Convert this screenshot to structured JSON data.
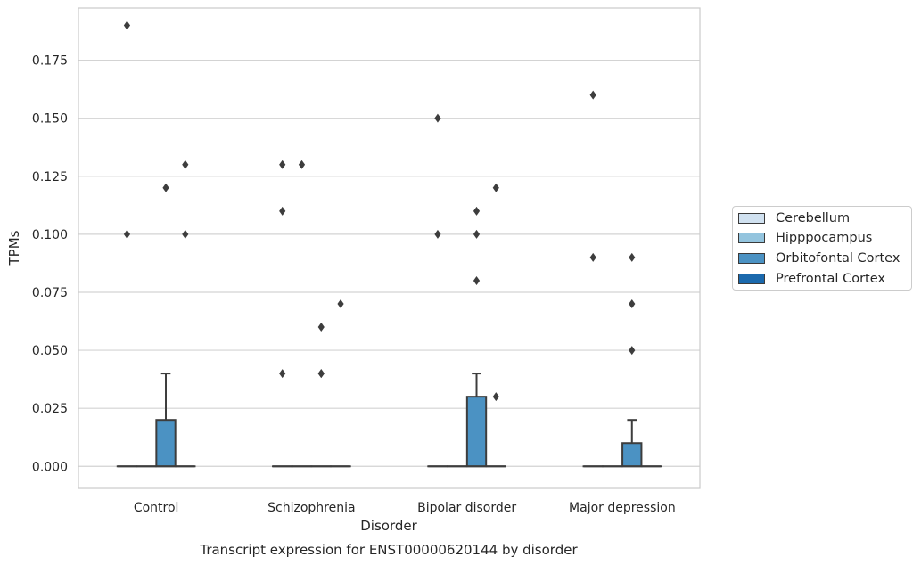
{
  "chart_data": {
    "type": "box",
    "title": "",
    "caption": "Transcript expression for ENST00000620144 by disorder",
    "xlabel": "Disorder",
    "ylabel": "TPMs",
    "ylim": [
      -0.0095,
      0.1975
    ],
    "yticks": [
      0.0,
      0.025,
      0.05,
      0.075,
      0.1,
      0.125,
      0.15,
      0.175
    ],
    "ytick_labels": [
      "0.000",
      "0.025",
      "0.050",
      "0.075",
      "0.100",
      "0.125",
      "0.150",
      "0.175"
    ],
    "grid": true,
    "legend_position": "right",
    "categories": [
      "Control",
      "Schizophrenia",
      "Bipolar disorder",
      "Major depression"
    ],
    "hue_order": [
      "Cerebellum",
      "Hipppocampus",
      "Orbitofontal Cortex",
      "Prefrontal Cortex"
    ],
    "colors": {
      "Cerebellum": "#d0e1f0",
      "Hipppocampus": "#93c4de",
      "Orbitofontal Cortex": "#4b92c3",
      "Prefrontal Cortex": "#1b69ad"
    },
    "series": [
      {
        "name": "Cerebellum",
        "boxes": [
          {
            "q1": 0,
            "median": 0,
            "q3": 0,
            "whislo": 0,
            "whishi": 0,
            "fliers": [
              0.19,
              0.1
            ]
          },
          {
            "q1": 0,
            "median": 0,
            "q3": 0,
            "whislo": 0,
            "whishi": 0,
            "fliers": [
              0.13,
              0.11,
              0.04
            ]
          },
          {
            "q1": 0,
            "median": 0,
            "q3": 0,
            "whislo": 0,
            "whishi": 0,
            "fliers": [
              0.15,
              0.1
            ]
          },
          {
            "q1": 0,
            "median": 0,
            "q3": 0,
            "whislo": 0,
            "whishi": 0,
            "fliers": [
              0.16,
              0.09
            ]
          }
        ]
      },
      {
        "name": "Hipppocampus",
        "boxes": [
          {
            "q1": 0,
            "median": 0,
            "q3": 0,
            "whislo": 0,
            "whishi": 0,
            "fliers": []
          },
          {
            "q1": 0,
            "median": 0,
            "q3": 0,
            "whislo": 0,
            "whishi": 0,
            "fliers": [
              0.13
            ]
          },
          {
            "q1": 0,
            "median": 0,
            "q3": 0,
            "whislo": 0,
            "whishi": 0,
            "fliers": []
          },
          {
            "q1": 0,
            "median": 0,
            "q3": 0,
            "whislo": 0,
            "whishi": 0,
            "fliers": []
          }
        ]
      },
      {
        "name": "Orbitofontal Cortex",
        "boxes": [
          {
            "q1": 0,
            "median": 0,
            "q3": 0.02,
            "whislo": 0,
            "whishi": 0.04,
            "fliers": [
              0.12
            ]
          },
          {
            "q1": 0,
            "median": 0,
            "q3": 0,
            "whislo": 0,
            "whishi": 0,
            "fliers": [
              0.06,
              0.04,
              0.04
            ]
          },
          {
            "q1": 0,
            "median": 0,
            "q3": 0.03,
            "whislo": 0,
            "whishi": 0.04,
            "fliers": [
              0.11,
              0.1,
              0.08
            ]
          },
          {
            "q1": 0,
            "median": 0,
            "q3": 0.01,
            "whislo": 0,
            "whishi": 0.02,
            "fliers": [
              0.09,
              0.07,
              0.05
            ]
          }
        ]
      },
      {
        "name": "Prefrontal Cortex",
        "boxes": [
          {
            "q1": 0,
            "median": 0,
            "q3": 0,
            "whislo": 0,
            "whishi": 0,
            "fliers": [
              0.13,
              0.1
            ]
          },
          {
            "q1": 0,
            "median": 0,
            "q3": 0,
            "whislo": 0,
            "whishi": 0,
            "fliers": [
              0.07
            ]
          },
          {
            "q1": 0,
            "median": 0,
            "q3": 0,
            "whislo": 0,
            "whishi": 0,
            "fliers": [
              0.12,
              0.03
            ]
          },
          {
            "q1": 0,
            "median": 0,
            "q3": 0,
            "whislo": 0,
            "whishi": 0,
            "fliers": []
          }
        ]
      }
    ]
  }
}
